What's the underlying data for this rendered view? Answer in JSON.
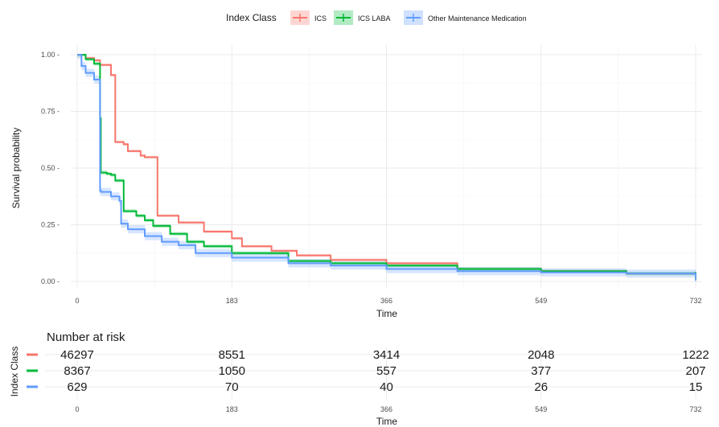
{
  "chart_data": {
    "type": "line",
    "subtype": "kaplan-meier survival curve",
    "legend": {
      "title": "Index Class",
      "position": "top",
      "entries": [
        "ICS",
        "ICS LABA",
        "Other Maintenance Medication"
      ]
    },
    "xlabel": "Time",
    "ylabel": "Survival probability",
    "xlim": [
      0,
      732
    ],
    "ylim": [
      0,
      1
    ],
    "x_ticks": [
      "0",
      "183",
      "366",
      "549",
      "732"
    ],
    "y_ticks": [
      "0.00",
      "0.25",
      "0.50",
      "0.75",
      "1.00"
    ],
    "grid": true,
    "colors": {
      "ICS": "#F8766D",
      "ICS LABA": "#00BA38",
      "Other Maintenance Medication": "#619CFF"
    },
    "series": [
      {
        "name": "ICS",
        "x": [
          0,
          10,
          20,
          27,
          40,
          45,
          45,
          55,
          60,
          75,
          80,
          95,
          95,
          120,
          150,
          183,
          195,
          195,
          230,
          260,
          300,
          366,
          450,
          549,
          650,
          732
        ],
        "y": [
          1.0,
          0.985,
          0.975,
          0.955,
          0.91,
          0.905,
          0.615,
          0.605,
          0.575,
          0.555,
          0.548,
          0.535,
          0.29,
          0.26,
          0.22,
          0.19,
          0.18,
          0.155,
          0.135,
          0.115,
          0.095,
          0.08,
          0.055,
          0.045,
          0.035,
          0.025
        ]
      },
      {
        "name": "ICS LABA",
        "x": [
          0,
          10,
          20,
          27,
          27,
          28,
          28,
          35,
          40,
          45,
          55,
          55,
          70,
          80,
          90,
          110,
          130,
          150,
          183,
          250,
          300,
          366,
          450,
          549,
          650,
          732
        ],
        "y": [
          1.0,
          0.98,
          0.96,
          0.965,
          0.72,
          0.7,
          0.48,
          0.475,
          0.47,
          0.445,
          0.43,
          0.31,
          0.29,
          0.27,
          0.245,
          0.21,
          0.175,
          0.155,
          0.125,
          0.09,
          0.08,
          0.07,
          0.055,
          0.045,
          0.035,
          0.025
        ]
      },
      {
        "name": "Other Maintenance Medication",
        "x": [
          0,
          5,
          10,
          20,
          27,
          27,
          28,
          40,
          50,
          52,
          52,
          60,
          80,
          100,
          120,
          140,
          183,
          250,
          300,
          366,
          450,
          549,
          650,
          732
        ],
        "y": [
          1.0,
          0.95,
          0.92,
          0.89,
          0.86,
          0.4,
          0.395,
          0.375,
          0.355,
          0.35,
          0.255,
          0.23,
          0.2,
          0.175,
          0.16,
          0.125,
          0.105,
          0.08,
          0.07,
          0.055,
          0.045,
          0.04,
          0.035,
          0.02
        ]
      }
    ],
    "risk_table": {
      "title": "Number at risk",
      "ylabel": "Index Class",
      "xlabel": "Time",
      "times": [
        "0",
        "183",
        "366",
        "549",
        "732"
      ],
      "rows": [
        {
          "name": "ICS",
          "values": [
            "46297",
            "8551",
            "3414",
            "2048",
            "1222"
          ]
        },
        {
          "name": "ICS LABA",
          "values": [
            "8367",
            "1050",
            "557",
            "377",
            "207"
          ]
        },
        {
          "name": "Other Maintenance Medication",
          "values": [
            "629",
            "70",
            "40",
            "26",
            "15"
          ]
        }
      ]
    }
  }
}
